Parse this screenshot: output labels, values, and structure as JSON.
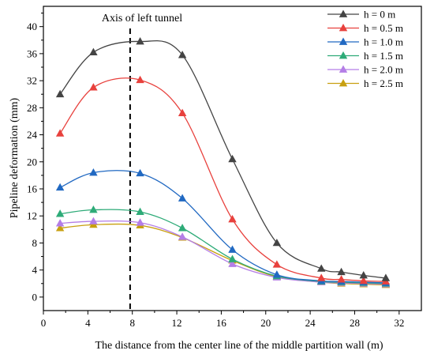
{
  "chart_data": {
    "type": "line",
    "xlabel": "The distance from the center line of the middle partition wall (m)",
    "ylabel": "Pipeline deformation (mm)",
    "xlim": [
      0,
      34
    ],
    "ylim": [
      -2,
      43
    ],
    "xticks": [
      0,
      4,
      8,
      12,
      16,
      20,
      24,
      28,
      32
    ],
    "yticks": [
      0,
      4,
      8,
      12,
      16,
      20,
      24,
      28,
      32,
      36,
      40
    ],
    "grid": false,
    "legend_position": "top-right",
    "annotation": {
      "label": "Axis of left tunnel",
      "x": 7.8
    },
    "x": [
      1.5,
      4.5,
      8.7,
      12.5,
      17.0,
      21.0,
      25.0,
      26.8,
      28.8,
      30.8
    ],
    "series": [
      {
        "name": "h = 0 m",
        "color": "#444444",
        "values": [
          30.0,
          36.2,
          37.8,
          35.8,
          20.4,
          8.0,
          4.2,
          3.7,
          3.2,
          2.8
        ]
      },
      {
        "name": "h = 0.5 m",
        "color": "#e8413d",
        "values": [
          24.2,
          31.0,
          32.1,
          27.2,
          11.5,
          4.8,
          2.8,
          2.6,
          2.4,
          2.3
        ]
      },
      {
        "name": "h = 1.0 m",
        "color": "#2169c2",
        "values": [
          16.2,
          18.4,
          18.3,
          14.6,
          7.0,
          3.3,
          2.4,
          2.3,
          2.2,
          2.1
        ]
      },
      {
        "name": "h = 1.5 m",
        "color": "#2eab78",
        "values": [
          12.3,
          12.9,
          12.6,
          10.2,
          5.6,
          3.1,
          2.3,
          2.2,
          2.1,
          2.0
        ]
      },
      {
        "name": "h = 2.0 m",
        "color": "#b47ee6",
        "values": [
          10.9,
          11.2,
          11.0,
          8.9,
          4.9,
          2.9,
          2.2,
          2.1,
          2.0,
          1.9
        ]
      },
      {
        "name": "h = 2.5 m",
        "color": "#c8a010",
        "values": [
          10.2,
          10.7,
          10.6,
          8.8,
          5.4,
          3.0,
          2.2,
          2.0,
          1.9,
          1.8
        ]
      }
    ]
  }
}
